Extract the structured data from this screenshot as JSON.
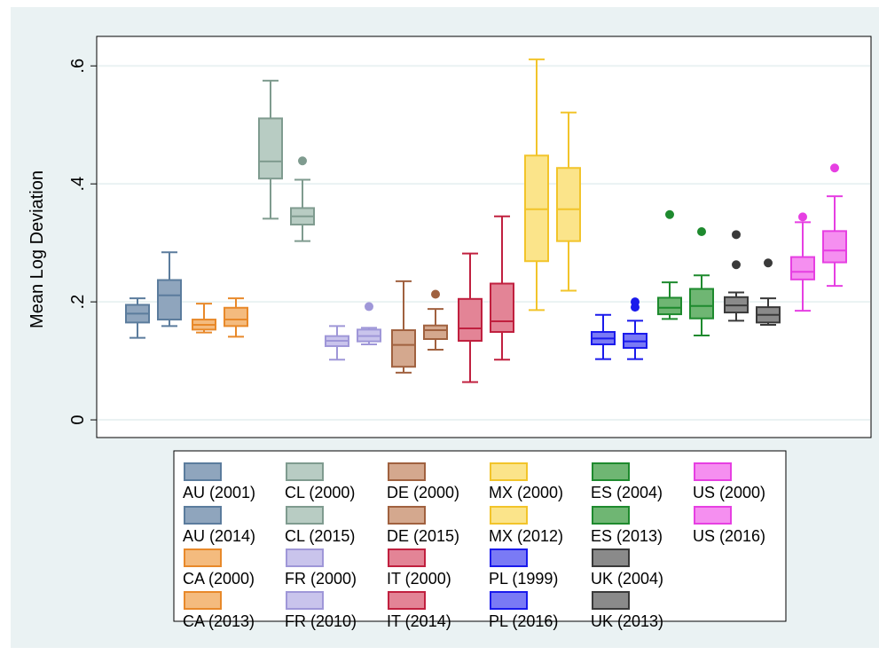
{
  "chart_data": {
    "type": "box",
    "ylabel": "Mean Log Deviation",
    "xlabel": "",
    "ylim": [
      -0.03,
      0.65
    ],
    "yticks": [
      {
        "value": 0,
        "label": "0"
      },
      {
        "value": 0.2,
        "label": ".2"
      },
      {
        "value": 0.4,
        "label": ".4"
      },
      {
        "value": 0.6,
        "label": ".6"
      }
    ],
    "grid": true,
    "legend_position": "bottom",
    "series": [
      {
        "name": "AU (2001)",
        "color": "#5b7c9d",
        "fill": "#8fa5bd",
        "min": 0.139,
        "q1": 0.165,
        "median": 0.18,
        "q3": 0.195,
        "max": 0.206,
        "outliers": []
      },
      {
        "name": "AU (2014)",
        "color": "#5b7c9d",
        "fill": "#8fa5bd",
        "min": 0.159,
        "q1": 0.17,
        "median": 0.211,
        "q3": 0.237,
        "max": 0.284,
        "outliers": []
      },
      {
        "name": "CA (2000)",
        "color": "#e8892a",
        "fill": "#f4bb7e",
        "min": 0.148,
        "q1": 0.153,
        "median": 0.161,
        "q3": 0.17,
        "max": 0.197,
        "outliers": []
      },
      {
        "name": "CA (2013)",
        "color": "#e8892a",
        "fill": "#f4bb7e",
        "min": 0.141,
        "q1": 0.159,
        "median": 0.17,
        "q3": 0.19,
        "max": 0.206,
        "outliers": []
      },
      {
        "name": "CL (2000)",
        "color": "#7f9b8f",
        "fill": "#b8ccc3",
        "min": 0.341,
        "q1": 0.409,
        "median": 0.438,
        "q3": 0.511,
        "max": 0.575,
        "outliers": []
      },
      {
        "name": "CL (2015)",
        "color": "#7f9b8f",
        "fill": "#b8ccc3",
        "min": 0.303,
        "q1": 0.331,
        "median": 0.345,
        "q3": 0.359,
        "max": 0.407,
        "outliers": [
          0.439
        ]
      },
      {
        "name": "FR (2000)",
        "color": "#9f97d8",
        "fill": "#c9c4ec",
        "min": 0.102,
        "q1": 0.125,
        "median": 0.134,
        "q3": 0.142,
        "max": 0.159,
        "outliers": []
      },
      {
        "name": "FR (2010)",
        "color": "#9f97d8",
        "fill": "#c9c4ec",
        "min": 0.128,
        "q1": 0.133,
        "median": 0.142,
        "q3": 0.153,
        "max": 0.156,
        "outliers": [
          0.192
        ]
      },
      {
        "name": "DE (2000)",
        "color": "#a0613f",
        "fill": "#d4a88e",
        "min": 0.08,
        "q1": 0.09,
        "median": 0.127,
        "q3": 0.152,
        "max": 0.235,
        "outliers": []
      },
      {
        "name": "DE (2015)",
        "color": "#a0613f",
        "fill": "#d4a88e",
        "min": 0.119,
        "q1": 0.137,
        "median": 0.152,
        "q3": 0.16,
        "max": 0.188,
        "outliers": [
          0.213
        ]
      },
      {
        "name": "IT (2000)",
        "color": "#c0203f",
        "fill": "#e38496",
        "min": 0.064,
        "q1": 0.134,
        "median": 0.155,
        "q3": 0.205,
        "max": 0.282,
        "outliers": []
      },
      {
        "name": "IT (2014)",
        "color": "#c0203f",
        "fill": "#e38496",
        "min": 0.102,
        "q1": 0.149,
        "median": 0.167,
        "q3": 0.231,
        "max": 0.345,
        "outliers": []
      },
      {
        "name": "MX (2000)",
        "color": "#f2c42a",
        "fill": "#fbe48a",
        "min": 0.186,
        "q1": 0.269,
        "median": 0.357,
        "q3": 0.448,
        "max": 0.611,
        "outliers": []
      },
      {
        "name": "MX (2012)",
        "color": "#f2c42a",
        "fill": "#fbe48a",
        "min": 0.219,
        "q1": 0.303,
        "median": 0.357,
        "q3": 0.427,
        "max": 0.521,
        "outliers": []
      },
      {
        "name": "PL (1999)",
        "color": "#1a1aec",
        "fill": "#7a7af5",
        "min": 0.103,
        "q1": 0.128,
        "median": 0.138,
        "q3": 0.149,
        "max": 0.178,
        "outliers": []
      },
      {
        "name": "PL (2016)",
        "color": "#1a1aec",
        "fill": "#7a7af5",
        "min": 0.103,
        "q1": 0.122,
        "median": 0.133,
        "q3": 0.146,
        "max": 0.168,
        "outliers": [
          0.191,
          0.2
        ]
      },
      {
        "name": "ES (2004)",
        "color": "#1e8a2e",
        "fill": "#6fb673",
        "min": 0.171,
        "q1": 0.179,
        "median": 0.19,
        "q3": 0.207,
        "max": 0.233,
        "outliers": [
          0.348
        ]
      },
      {
        "name": "ES (2013)",
        "color": "#1e8a2e",
        "fill": "#6fb673",
        "min": 0.143,
        "q1": 0.172,
        "median": 0.193,
        "q3": 0.222,
        "max": 0.245,
        "outliers": [
          0.319
        ]
      },
      {
        "name": "UK (2004)",
        "color": "#3a3a3a",
        "fill": "#8a8a8a",
        "min": 0.168,
        "q1": 0.182,
        "median": 0.194,
        "q3": 0.208,
        "max": 0.216,
        "outliers": [
          0.263,
          0.314
        ]
      },
      {
        "name": "UK (2013)",
        "color": "#3a3a3a",
        "fill": "#8a8a8a",
        "min": 0.161,
        "q1": 0.165,
        "median": 0.178,
        "q3": 0.191,
        "max": 0.206,
        "outliers": [
          0.266
        ]
      },
      {
        "name": "US (2000)",
        "color": "#e63fe2",
        "fill": "#f58ff0",
        "min": 0.185,
        "q1": 0.238,
        "median": 0.251,
        "q3": 0.276,
        "max": 0.335,
        "outliers": [
          0.344
        ]
      },
      {
        "name": "US (2016)",
        "color": "#e63fe2",
        "fill": "#f58ff0",
        "min": 0.227,
        "q1": 0.267,
        "median": 0.287,
        "q3": 0.32,
        "max": 0.379,
        "outliers": [
          0.427
        ]
      }
    ],
    "legend_columns": [
      [
        "AU (2001)",
        "AU (2014)",
        "CA (2000)",
        "CA (2013)"
      ],
      [
        "CL (2000)",
        "CL (2015)",
        "FR (2000)",
        "FR (2010)"
      ],
      [
        "DE (2000)",
        "DE (2015)",
        "IT (2000)",
        "IT (2014)"
      ],
      [
        "MX (2000)",
        "MX (2012)",
        "PL (1999)",
        "PL (2016)"
      ],
      [
        "ES (2004)",
        "ES (2013)",
        "UK (2004)",
        "UK (2013)"
      ],
      [
        "US (2000)",
        "US (2016)"
      ]
    ],
    "colors": {
      "background": "#eaf2f3",
      "plot_background": "#ffffff",
      "grid": "#eaf2f3",
      "axis": "#000000"
    }
  }
}
